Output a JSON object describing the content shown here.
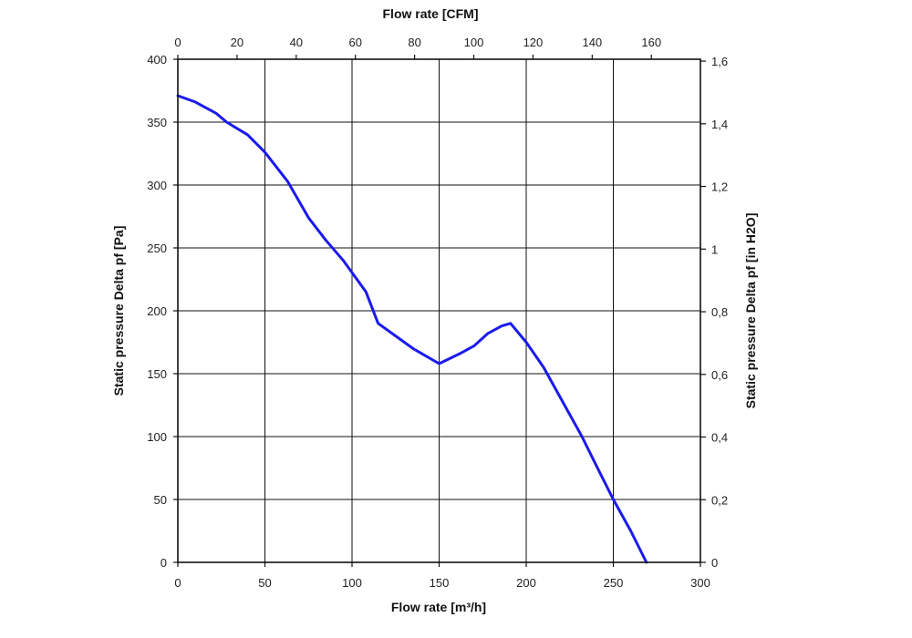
{
  "chart_data": {
    "type": "line",
    "xlabel": "Flow rate [m³/h]",
    "x2label": "Flow rate [CFM]",
    "ylabel": "Static pressure Delta pf [Pa]",
    "y2label": "Static pressure Delta pf [in H2O]",
    "xlim": [
      0,
      300
    ],
    "ylim": [
      0,
      400
    ],
    "x2lim": [
      0,
      176.57
    ],
    "y2lim": [
      0,
      1.606
    ],
    "grid": true,
    "x_ticks": [
      "0",
      "50",
      "100",
      "150",
      "200",
      "250",
      "300"
    ],
    "x_tick_values": [
      0,
      50,
      100,
      150,
      200,
      250,
      300
    ],
    "y_ticks": [
      "0",
      "50",
      "100",
      "150",
      "200",
      "250",
      "300",
      "350",
      "400"
    ],
    "y_tick_values": [
      0,
      50,
      100,
      150,
      200,
      250,
      300,
      350,
      400
    ],
    "x2_ticks": [
      "0",
      "20",
      "40",
      "60",
      "80",
      "100",
      "120",
      "140",
      "160"
    ],
    "x2_tick_values": [
      0,
      20,
      40,
      60,
      80,
      100,
      120,
      140,
      160
    ],
    "y2_ticks": [
      "0",
      "0,2",
      "0,4",
      "0,6",
      "0,8",
      "1",
      "1,2",
      "1,4",
      "1,6"
    ],
    "y2_tick_values": [
      0,
      0.2,
      0.4,
      0.6,
      0.8,
      1.0,
      1.2,
      1.4,
      1.6
    ],
    "series": [
      {
        "color": "#1a1aee",
        "x": [
          0,
          10,
          22,
          28,
          40,
          50,
          63,
          75,
          85,
          95,
          108,
          115,
          125,
          135,
          150,
          162,
          170,
          178,
          186,
          191,
          200,
          210,
          220,
          232,
          242,
          250,
          260,
          269
        ],
        "y": [
          371,
          366,
          357,
          350,
          340,
          326,
          303,
          274,
          256,
          240,
          215,
          190,
          180,
          170,
          158,
          166,
          172,
          182,
          188,
          190,
          175,
          155,
          130,
          100,
          72,
          50,
          25,
          0
        ]
      }
    ]
  }
}
